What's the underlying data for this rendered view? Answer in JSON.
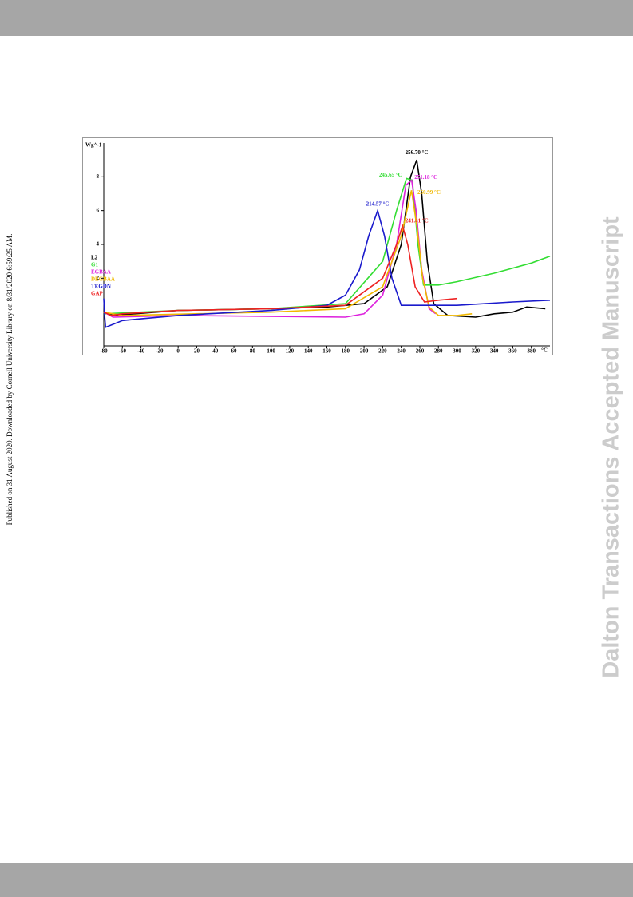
{
  "sidebar_text": "Published on 31 August 2020. Downloaded by Cornell University Library on 8/31/2020 6:59:25 AM.",
  "watermark": "Dalton Transactions Accepted Manuscript",
  "chart_data": {
    "type": "line",
    "y_label": "Wg^-1",
    "x_label": "°C",
    "xlim": [
      -80,
      400
    ],
    "ylim": [
      -2,
      10
    ],
    "xticks": [
      -80,
      -60,
      -40,
      -20,
      0,
      20,
      40,
      60,
      80,
      100,
      120,
      140,
      160,
      180,
      200,
      220,
      240,
      260,
      280,
      300,
      320,
      340,
      360,
      380
    ],
    "yticks": [
      2,
      4,
      6,
      8
    ],
    "grid": false,
    "legend": "left",
    "series": [
      {
        "name": "L2",
        "color": "#000000",
        "peak_label": "256.70 °C",
        "x": [
          -80,
          -70,
          0,
          100,
          160,
          200,
          225,
          240,
          250,
          256.7,
          262,
          268,
          275,
          290,
          320,
          340,
          360,
          375,
          395
        ],
        "values": [
          0,
          -0.2,
          0.1,
          0.2,
          0.3,
          0.5,
          1.5,
          4,
          8,
          9,
          7,
          3,
          0.5,
          -0.2,
          -0.3,
          -0.1,
          0,
          0.3,
          0.2
        ]
      },
      {
        "name": "G1",
        "color": "#33dd33",
        "peak_label": "245.65 °C",
        "x": [
          -80,
          0,
          100,
          180,
          220,
          235,
          245.65,
          252,
          258,
          264,
          280,
          300,
          340,
          380,
          400
        ],
        "values": [
          -0.1,
          0.1,
          0.2,
          0.5,
          3,
          6,
          7.9,
          7.8,
          4,
          1.6,
          1.6,
          1.8,
          2.3,
          2.9,
          3.3
        ]
      },
      {
        "name": "EGBAA",
        "color": "#dd22dd",
        "peak_label": "251.18 °C",
        "x": [
          -80,
          -70,
          0,
          180,
          200,
          220,
          235,
          245,
          251.18,
          256,
          262,
          270,
          277
        ],
        "values": [
          0,
          -0.3,
          -0.2,
          -0.3,
          -0.1,
          1,
          4,
          7.5,
          7.8,
          6,
          2.5,
          0.2,
          -0.1
        ]
      },
      {
        "name": "DEGBAA",
        "color": "#f0b800",
        "peak_label": "250.99 °C",
        "x": [
          -80,
          -60,
          100,
          180,
          220,
          240,
          250.99,
          257,
          263,
          270,
          280,
          300,
          316
        ],
        "values": [
          0,
          -0.2,
          0,
          0.2,
          1.5,
          4.5,
          7.2,
          5,
          2,
          0.3,
          -0.2,
          -0.2,
          -0.1
        ]
      },
      {
        "name": "TEGDN",
        "color": "#1a1acc",
        "peak_label": "214.57 °C",
        "x": [
          -80,
          -79,
          -78,
          -60,
          -40,
          0,
          100,
          160,
          180,
          195,
          205,
          214.57,
          222,
          230,
          240,
          260,
          300,
          360,
          400
        ],
        "values": [
          0.8,
          -0.3,
          -0.9,
          -0.5,
          -0.4,
          -0.2,
          0.1,
          0.4,
          1,
          2.5,
          4.5,
          6,
          4.5,
          2,
          0.4,
          0.4,
          0.4,
          0.6,
          0.7
        ]
      },
      {
        "name": "GAP",
        "color": "#ee2222",
        "peak_label": "241.41 °C",
        "x": [
          -80,
          -72,
          -60,
          0,
          100,
          180,
          220,
          235,
          241.41,
          247,
          255,
          265,
          280,
          300
        ],
        "values": [
          0,
          -0.2,
          -0.1,
          0.1,
          0.2,
          0.4,
          2,
          4,
          5.1,
          4,
          1.5,
          0.6,
          0.7,
          0.8
        ]
      }
    ]
  }
}
